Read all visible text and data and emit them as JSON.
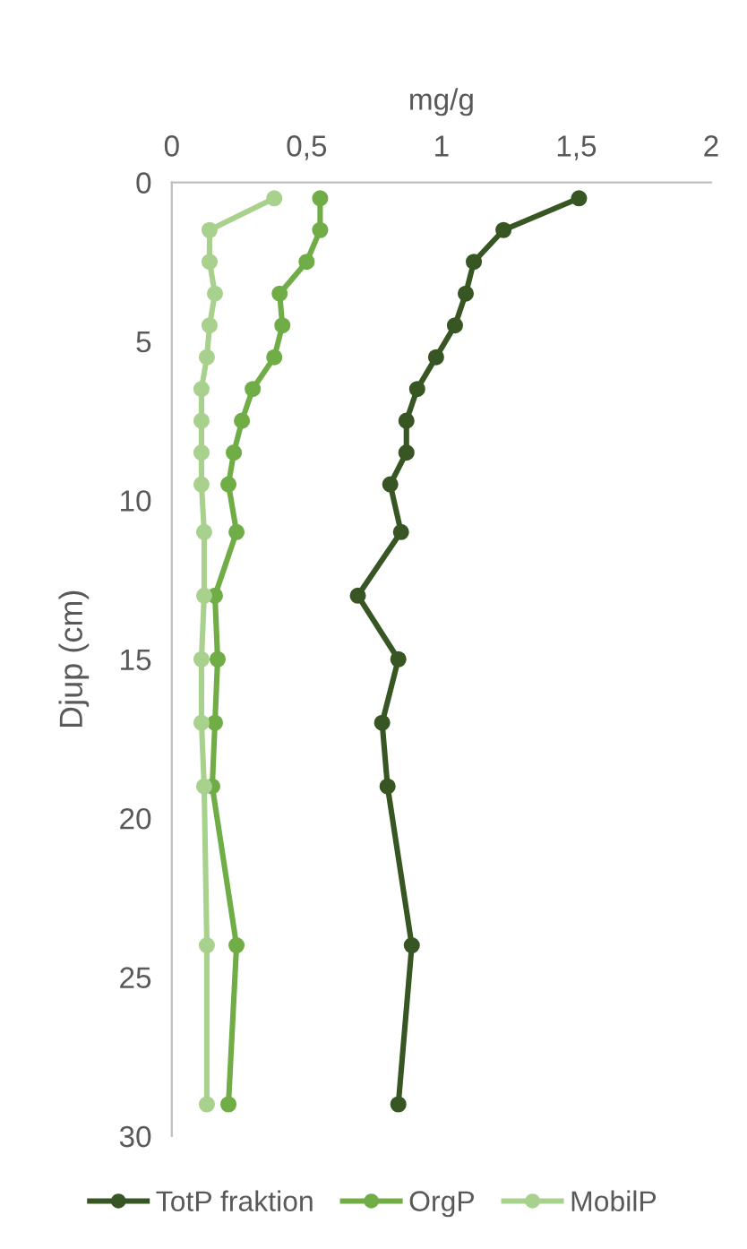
{
  "chart_data": {
    "type": "line",
    "xlabel": "mg/g",
    "ylabel": "Djup (cm)",
    "xlim": [
      0,
      2
    ],
    "xticks": [
      0,
      {
        "value": 0.5,
        "label": "0,5"
      },
      1,
      {
        "value": 1.5,
        "label": "1,5"
      },
      2
    ],
    "ylim": [
      30,
      0
    ],
    "yticks": [
      0,
      5,
      10,
      15,
      20,
      25,
      30
    ],
    "grid": false,
    "legend": "bottom",
    "marker": "circle",
    "line_style": "solid",
    "series": [
      {
        "name": "TotP fraktion",
        "color": "#375623",
        "x": [
          1.51,
          1.23,
          1.12,
          1.09,
          1.05,
          0.98,
          0.91,
          0.87,
          0.87,
          0.81,
          0.85,
          0.69,
          0.84,
          0.78,
          0.8,
          0.89,
          0.84
        ],
        "values": [
          0.5,
          1.5,
          2.5,
          3.5,
          4.5,
          5.5,
          6.5,
          7.5,
          8.5,
          9.5,
          11,
          13,
          15,
          17,
          19,
          24,
          29
        ]
      },
      {
        "name": "OrgP",
        "color": "#70ad47",
        "x": [
          0.55,
          0.55,
          0.5,
          0.4,
          0.41,
          0.38,
          0.3,
          0.26,
          0.23,
          0.21,
          0.24,
          0.16,
          0.17,
          0.16,
          0.15,
          0.24,
          0.21
        ],
        "values": [
          0.5,
          1.5,
          2.5,
          3.5,
          4.5,
          5.5,
          6.5,
          7.5,
          8.5,
          9.5,
          11,
          13,
          15,
          17,
          19,
          24,
          29
        ]
      },
      {
        "name": "MobilP",
        "color": "#a9d18e",
        "x": [
          0.38,
          0.14,
          0.14,
          0.16,
          0.14,
          0.13,
          0.11,
          0.11,
          0.11,
          0.11,
          0.12,
          0.12,
          0.11,
          0.11,
          0.12,
          0.13,
          0.13
        ],
        "values": [
          0.5,
          1.5,
          2.5,
          3.5,
          4.5,
          5.5,
          6.5,
          7.5,
          8.5,
          9.5,
          11,
          13,
          15,
          17,
          19,
          24,
          29
        ]
      }
    ]
  }
}
